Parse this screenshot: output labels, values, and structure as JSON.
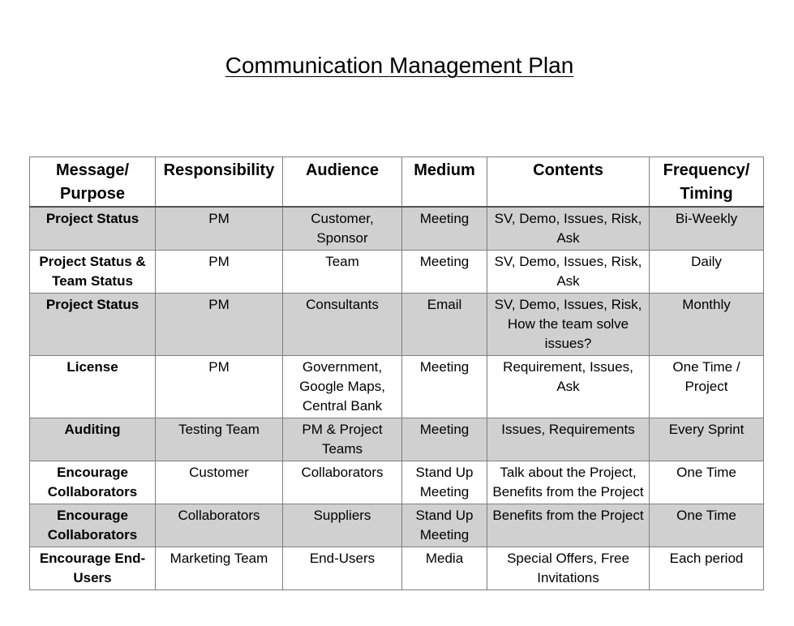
{
  "title": "Communication Management Plan",
  "table": {
    "headers": [
      "Message/ Purpose",
      "Responsibility",
      "Audience",
      "Medium",
      "Contents",
      "Frequency/ Timing"
    ],
    "rows": [
      {
        "purpose": "Project Status",
        "responsibility": "PM",
        "audience": "Customer, Sponsor",
        "medium": "Meeting",
        "contents": "SV, Demo, Issues, Risk, Ask",
        "frequency": "Bi-Weekly",
        "shaded": true
      },
      {
        "purpose": "Project Status & Team Status",
        "responsibility": "PM",
        "audience": "Team",
        "medium": "Meeting",
        "contents": "SV, Demo, Issues, Risk, Ask",
        "frequency": "Daily",
        "shaded": false
      },
      {
        "purpose": "Project Status",
        "responsibility": "PM",
        "audience": "Consultants",
        "medium": "Email",
        "contents": "SV, Demo, Issues, Risk, How the team solve issues?",
        "frequency": "Monthly",
        "shaded": true
      },
      {
        "purpose": "License",
        "responsibility": "PM",
        "audience": "Government, Google Maps, Central Bank",
        "medium": "Meeting",
        "contents": "Requirement, Issues, Ask",
        "frequency": "One Time / Project",
        "shaded": false
      },
      {
        "purpose": "Auditing",
        "responsibility": "Testing Team",
        "audience": "PM & Project Teams",
        "medium": "Meeting",
        "contents": "Issues, Requirements",
        "frequency": "Every Sprint",
        "shaded": true
      },
      {
        "purpose": "Encourage Collaborators",
        "responsibility": "Customer",
        "audience": "Collaborators",
        "medium": "Stand Up Meeting",
        "contents": "Talk about the Project, Benefits from the Project",
        "frequency": "One Time",
        "shaded": false
      },
      {
        "purpose": "Encourage Collaborators",
        "responsibility": "Collaborators",
        "audience": "Suppliers",
        "medium": "Stand Up Meeting",
        "contents": "Benefits from the Project",
        "frequency": "One Time",
        "shaded": true
      },
      {
        "purpose": "Encourage End-Users",
        "responsibility": "Marketing Team",
        "audience": "End-Users",
        "medium": "Media",
        "contents": "Special Offers, Free Invitations",
        "frequency": "Each period",
        "shaded": false
      }
    ]
  }
}
